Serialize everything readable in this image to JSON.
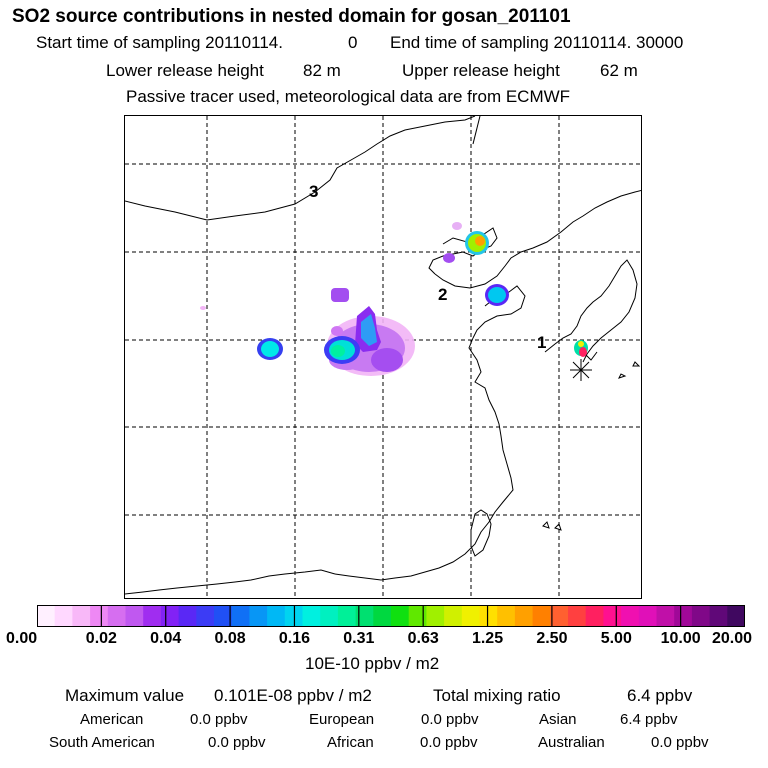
{
  "header": {
    "title": "SO2 source contributions in nested domain for gosan_201101",
    "start_label": "Start time of sampling 20110114.",
    "start_hour": "0",
    "end_label": "End time of sampling 20110114. 30000",
    "lower_label": "Lower release height",
    "lower_value": "82 m",
    "upper_label": "Upper release height",
    "upper_value": "62 m",
    "note": "Passive tracer used, meteorological data are from ECMWF"
  },
  "map": {
    "region_labels": [
      "1",
      "2",
      "3"
    ],
    "receptor_marker": "asterisk-icon"
  },
  "colorbar": {
    "tick_labels": [
      "0.00",
      "0.02",
      "0.04",
      "0.08",
      "0.16",
      "0.31",
      "0.63",
      "1.25",
      "2.50",
      "5.00",
      "10.00",
      "20.00"
    ],
    "colors": [
      "#fff0ff",
      "#ffd8ff",
      "#f8b8f8",
      "#ee88f4",
      "#d66ef0",
      "#c058f0",
      "#a02df0",
      "#8222f5",
      "#5a28f5",
      "#3c3cf5",
      "#2050f5",
      "#1070f5",
      "#0896f5",
      "#00b8f5",
      "#00d4f0",
      "#00f0e0",
      "#00f0c0",
      "#00f098",
      "#00e070",
      "#00d840",
      "#10e010",
      "#60e800",
      "#a0f000",
      "#d0f000",
      "#f0f000",
      "#ffe000",
      "#ffc000",
      "#ffa000",
      "#ff8000",
      "#ff6030",
      "#ff4040",
      "#ff2060",
      "#ff1090",
      "#f010b0",
      "#e010b8",
      "#c010a8",
      "#a00898",
      "#800888",
      "#600878",
      "#400860"
    ],
    "units": "10E-10 ppbv / m2"
  },
  "stats": {
    "max_label": "Maximum value",
    "max_value": "0.101E-08 ppbv / m2",
    "total_label": "Total mixing ratio",
    "total_value": "6.4 ppbv",
    "regions": [
      {
        "name": "American",
        "value": "0.0 ppbv"
      },
      {
        "name": "European",
        "value": "0.0 ppbv"
      },
      {
        "name": "Asian",
        "value": "6.4 ppbv"
      },
      {
        "name": "South American",
        "value": "0.0 ppbv"
      },
      {
        "name": "African",
        "value": "0.0 ppbv"
      },
      {
        "name": "Australian",
        "value": "0.0 ppbv"
      }
    ]
  }
}
